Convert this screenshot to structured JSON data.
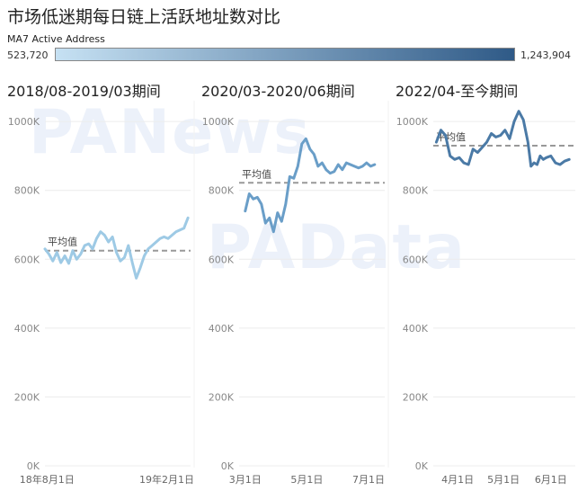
{
  "title": "市场低迷期每日链上活跃地址数对比",
  "legend": {
    "title": "MA7 Active Address",
    "min_label": "523,720",
    "max_label": "1,243,904",
    "min_value": 523720,
    "max_value": 1243904,
    "color_low": "#c6e1f3",
    "color_high": "#2f5a87"
  },
  "watermarks": [
    "PANews",
    "PAData"
  ],
  "chart_data": [
    {
      "type": "line",
      "title": "2018/08-2019/03期间",
      "ylim": [
        0,
        1050000
      ],
      "yticks": [
        0,
        200000,
        400000,
        600000,
        800000,
        1000000
      ],
      "ytick_labels": [
        "0K",
        "200K",
        "400K",
        "600K",
        "800K",
        "1000K"
      ],
      "xticks": [
        3,
        184
      ],
      "xtick_labels": [
        "18年8月1日",
        "19年2月1日"
      ],
      "xlim": [
        0,
        220
      ],
      "average": 625000,
      "average_label": "平均值",
      "line_color": "#9ecae5",
      "x": [
        0,
        6,
        12,
        18,
        24,
        30,
        36,
        42,
        48,
        54,
        60,
        66,
        72,
        78,
        84,
        90,
        96,
        102,
        108,
        114,
        120,
        126,
        132,
        138,
        144,
        150,
        156,
        162,
        168,
        174,
        180,
        186,
        192,
        198,
        204,
        210,
        216
      ],
      "values": [
        630000,
        615000,
        595000,
        620000,
        590000,
        610000,
        588000,
        625000,
        600000,
        615000,
        640000,
        645000,
        630000,
        660000,
        680000,
        670000,
        650000,
        665000,
        620000,
        595000,
        605000,
        640000,
        590000,
        545000,
        575000,
        610000,
        630000,
        640000,
        650000,
        660000,
        665000,
        660000,
        670000,
        680000,
        685000,
        690000,
        720000
      ]
    },
    {
      "type": "line",
      "title": "2020/03-2020/06期间",
      "ylim": [
        0,
        1050000
      ],
      "yticks": [
        0,
        200000,
        400000,
        600000,
        800000,
        1000000
      ],
      "ytick_labels": [
        "0K",
        "200K",
        "400K",
        "600K",
        "800K",
        "1000K"
      ],
      "xticks": [
        0,
        61,
        122
      ],
      "xtick_labels": [
        "3月1日",
        "5月1日",
        "7月1日"
      ],
      "xlim": [
        -6,
        138
      ],
      "average": 822000,
      "average_label": "平均值",
      "line_color": "#6a9ec8",
      "x": [
        0,
        4,
        8,
        12,
        16,
        20,
        24,
        28,
        32,
        36,
        40,
        44,
        48,
        52,
        56,
        60,
        64,
        68,
        72,
        76,
        80,
        84,
        88,
        92,
        96,
        100,
        104,
        108,
        112,
        116,
        120,
        124,
        128
      ],
      "values": [
        740000,
        790000,
        775000,
        780000,
        760000,
        705000,
        720000,
        680000,
        735000,
        710000,
        760000,
        840000,
        835000,
        870000,
        935000,
        950000,
        920000,
        905000,
        870000,
        880000,
        860000,
        850000,
        855000,
        875000,
        860000,
        880000,
        875000,
        870000,
        865000,
        870000,
        880000,
        870000,
        875000
      ]
    },
    {
      "type": "line",
      "title": "2022/04-至今期间",
      "ylim": [
        0,
        1050000
      ],
      "yticks": [
        0,
        200000,
        400000,
        600000,
        800000,
        1000000
      ],
      "ytick_labels": [
        "0K",
        "200K",
        "400K",
        "600K",
        "800K",
        "1000K"
      ],
      "xticks": [
        0,
        30,
        61
      ],
      "xtick_labels": [
        "4月1日",
        "5月1日",
        "6月1日"
      ],
      "xlim": [
        -16,
        77
      ],
      "average": 930000,
      "average_label": "平均值",
      "line_color": "#4b7aa6",
      "x": [
        -14,
        -11,
        -8,
        -5,
        -2,
        1,
        4,
        7,
        10,
        13,
        16,
        19,
        22,
        25,
        28,
        31,
        34,
        37,
        40,
        43,
        46,
        48,
        50,
        52,
        54,
        56,
        58,
        61,
        64,
        67,
        70,
        73
      ],
      "values": [
        940000,
        975000,
        960000,
        900000,
        890000,
        895000,
        880000,
        875000,
        920000,
        910000,
        925000,
        940000,
        965000,
        955000,
        960000,
        975000,
        950000,
        1000000,
        1030000,
        1005000,
        940000,
        870000,
        880000,
        875000,
        900000,
        890000,
        895000,
        900000,
        880000,
        875000,
        885000,
        890000
      ]
    }
  ]
}
